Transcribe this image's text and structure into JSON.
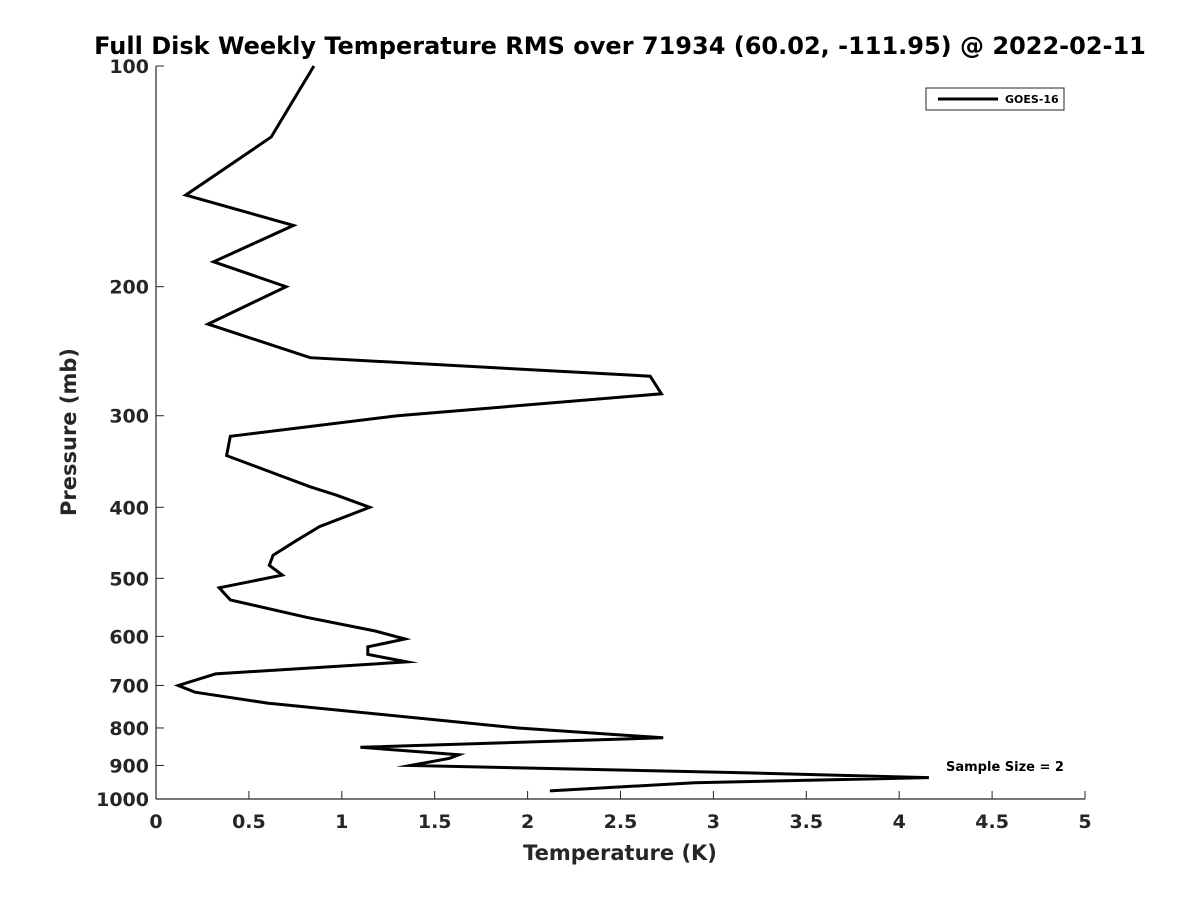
{
  "chart_data": {
    "type": "line",
    "title": "Full Disk Weekly Temperature RMS over 71934 (60.02, -111.95) @ 2022-02-11",
    "xlabel": "Temperature (K)",
    "ylabel": "Pressure (mb)",
    "xlim": [
      0,
      5
    ],
    "ylim": [
      100,
      1000
    ],
    "yscale": "log",
    "yreversed": true,
    "xticks": [
      0,
      0.5,
      1,
      1.5,
      2,
      2.5,
      3,
      3.5,
      4,
      4.5,
      5
    ],
    "xtick_labels": [
      "0",
      "0.5",
      "1",
      "1.5",
      "2",
      "2.5",
      "3",
      "3.5",
      "4",
      "4.5",
      "5"
    ],
    "yticks": [
      100,
      200,
      300,
      400,
      500,
      600,
      700,
      800,
      900,
      1000
    ],
    "ytick_labels": [
      "100",
      "200",
      "300",
      "400",
      "500",
      "600",
      "700",
      "800",
      "900",
      "1000"
    ],
    "grid": false,
    "legend_position": "top-right",
    "annotation": "Sample Size = 2",
    "series": [
      {
        "name": "GOES-16",
        "color": "#000000",
        "points": [
          [
            0.85,
            100
          ],
          [
            0.62,
            125
          ],
          [
            0.16,
            150
          ],
          [
            0.74,
            165
          ],
          [
            0.31,
            185
          ],
          [
            0.7,
            200
          ],
          [
            0.28,
            225
          ],
          [
            0.83,
            250
          ],
          [
            2.66,
            265
          ],
          [
            2.72,
            280
          ],
          [
            1.3,
            300
          ],
          [
            0.4,
            320
          ],
          [
            0.38,
            340
          ],
          [
            0.83,
            375
          ],
          [
            0.97,
            385
          ],
          [
            1.15,
            400
          ],
          [
            0.88,
            425
          ],
          [
            0.75,
            445
          ],
          [
            0.63,
            465
          ],
          [
            0.61,
            480
          ],
          [
            0.68,
            495
          ],
          [
            0.34,
            515
          ],
          [
            0.4,
            535
          ],
          [
            0.81,
            565
          ],
          [
            1.18,
            590
          ],
          [
            1.34,
            605
          ],
          [
            1.14,
            620
          ],
          [
            1.14,
            635
          ],
          [
            1.35,
            650
          ],
          [
            0.32,
            675
          ],
          [
            0.12,
            700
          ],
          [
            0.21,
            715
          ],
          [
            0.6,
            740
          ],
          [
            1.95,
            800
          ],
          [
            2.73,
            825
          ],
          [
            1.1,
            850
          ],
          [
            1.63,
            870
          ],
          [
            1.58,
            880
          ],
          [
            1.37,
            900
          ],
          [
            3.1,
            920
          ],
          [
            4.16,
            935
          ],
          [
            2.9,
            950
          ],
          [
            2.12,
            975
          ]
        ]
      }
    ]
  }
}
